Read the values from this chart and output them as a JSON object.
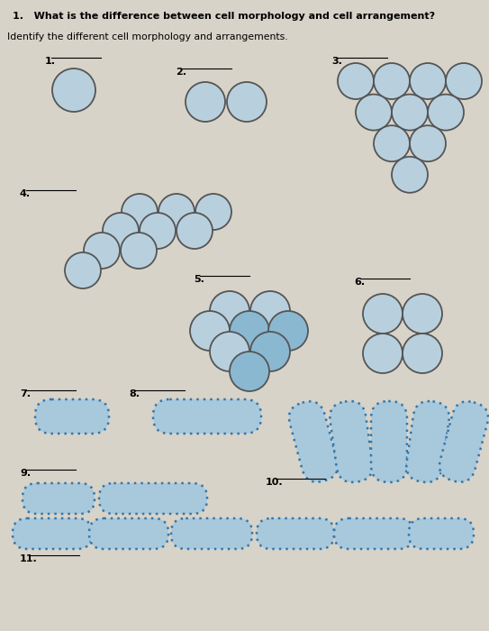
{
  "bg_color": "#d8d3c8",
  "cell_fill": "#b8d0de",
  "cell_fill_alt": "#8ab8d0",
  "cell_edge": "#555555",
  "rod_fill": "#a8c8dc",
  "rod_edge": "#3377aa",
  "title_q": "1.   What is the difference between cell morphology and cell arrangement?",
  "subtitle": "Identify the different cell morphology and arrangements.",
  "title_fontsize": 8.0,
  "subtitle_fontsize": 7.8,
  "label_fontsize": 8.0
}
